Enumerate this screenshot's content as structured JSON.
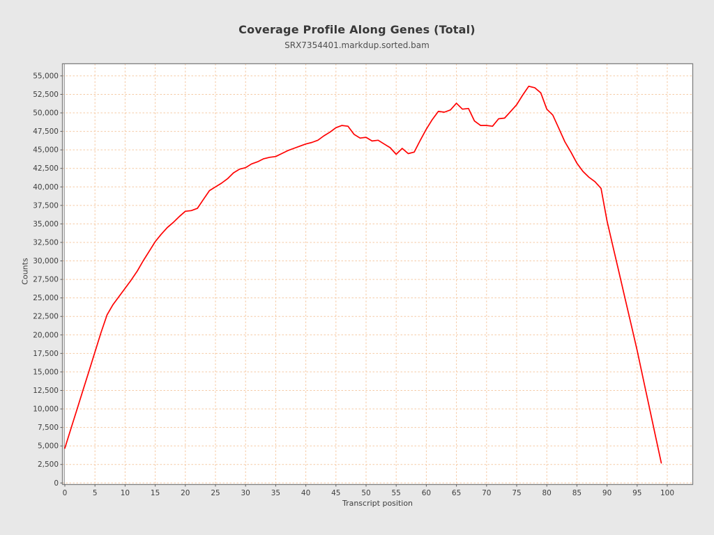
{
  "page": {
    "background": "#e8e8e8"
  },
  "chart": {
    "title": "Coverage Profile Along Genes (Total)",
    "subtitle": "SRX7354401.markdup.sorted.bam",
    "xlabel": "Transcript position",
    "ylabel": "Counts"
  },
  "colors": {
    "line": "#ff0000",
    "grid": "#f5c9a3",
    "plot_background": "#ffffff",
    "outer_background": "#e8e8e8",
    "plot_border": "#7f7f7f",
    "tick": "#5a5a5a",
    "tick_label": "#3d3d3d",
    "title_text": "#383838"
  },
  "chart_data": {
    "type": "line",
    "title": "Coverage Profile Along Genes (Total)",
    "subtitle": "SRX7354401.markdup.sorted.bam",
    "xlabel": "Transcript position",
    "ylabel": "Counts",
    "xlim": [
      -0.3,
      104.2
    ],
    "ylim": [
      0,
      56600
    ],
    "x_ticks": [
      0,
      5,
      10,
      15,
      20,
      25,
      30,
      35,
      40,
      45,
      50,
      55,
      60,
      65,
      70,
      75,
      80,
      85,
      90,
      95,
      100
    ],
    "y_ticks": [
      0,
      2500,
      5000,
      7500,
      10000,
      12500,
      15000,
      17500,
      20000,
      22500,
      25000,
      27500,
      30000,
      32500,
      35000,
      37500,
      40000,
      42500,
      45000,
      47500,
      50000,
      52500,
      55000
    ],
    "grid": {
      "show": true,
      "style": "dashed",
      "color": "#f5c9a3"
    },
    "legend": "none",
    "series": [
      {
        "name": "SRX7354401.markdup.sorted.bam",
        "color": "#ff0000",
        "x": [
          0,
          1,
          2,
          3,
          4,
          5,
          6,
          7,
          8,
          9,
          10,
          11,
          12,
          13,
          14,
          15,
          16,
          17,
          18,
          19,
          20,
          21,
          22,
          23,
          24,
          25,
          26,
          27,
          28,
          29,
          30,
          31,
          32,
          33,
          34,
          35,
          36,
          37,
          38,
          39,
          40,
          41,
          42,
          43,
          44,
          45,
          46,
          47,
          48,
          49,
          50,
          51,
          52,
          53,
          54,
          55,
          56,
          57,
          58,
          59,
          60,
          61,
          62,
          63,
          64,
          65,
          66,
          67,
          68,
          69,
          70,
          71,
          72,
          73,
          74,
          75,
          76,
          77,
          78,
          79,
          80,
          81,
          82,
          83,
          84,
          85,
          86,
          87,
          88,
          89,
          90,
          91,
          92,
          93,
          94,
          95,
          96,
          97,
          98,
          99
        ],
        "values": [
          4700,
          7300,
          9900,
          12500,
          15100,
          17700,
          20300,
          22700,
          24100,
          25200,
          26300,
          27400,
          28600,
          30000,
          31300,
          32600,
          33600,
          34500,
          35200,
          36000,
          36700,
          36800,
          37100,
          38300,
          39500,
          40000,
          40500,
          41100,
          41900,
          42400,
          42600,
          43100,
          43400,
          43800,
          44000,
          44100,
          44500,
          44900,
          45200,
          45500,
          45800,
          46000,
          46300,
          46900,
          47400,
          48000,
          48300,
          48200,
          47100,
          46600,
          46700,
          46200,
          46300,
          45800,
          45300,
          44400,
          45200,
          44500,
          44700,
          46300,
          47800,
          49100,
          50200,
          50100,
          50400,
          51300,
          50500,
          50600,
          48900,
          48300,
          48300,
          48200,
          49200,
          49300,
          50200,
          51100,
          52400,
          53600,
          53400,
          52700,
          50500,
          49700,
          47900,
          46100,
          44700,
          43200,
          42100,
          41300,
          40700,
          39800,
          35400,
          31900,
          28400,
          24900,
          21400,
          17900,
          14100,
          10300,
          6500,
          2700
        ]
      }
    ]
  }
}
